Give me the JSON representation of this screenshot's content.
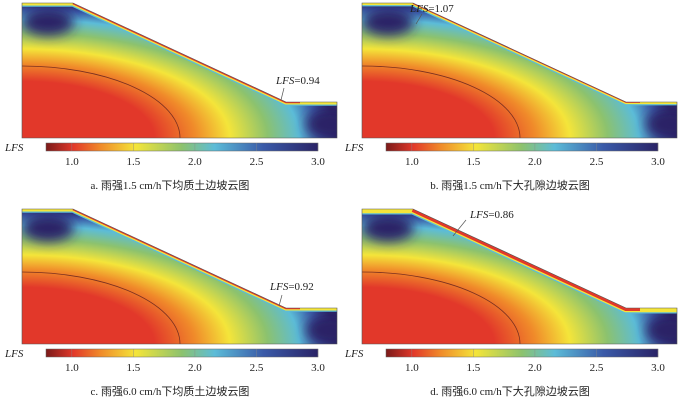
{
  "colorbar": {
    "label": "LFS",
    "ticks": [
      "1.0",
      "1.5",
      "2.0",
      "2.5",
      "3.0"
    ],
    "tick_values": [
      1.0,
      1.5,
      2.0,
      2.5,
      3.0
    ],
    "range": [
      0.79,
      3.0
    ]
  },
  "panels": [
    {
      "caption": "a. 雨强1.5 cm/h下均质土边坡云图",
      "annotation_prefix": "LFS",
      "annotation_value": "=0.94"
    },
    {
      "caption": "b. 雨强1.5 cm/h下大孔隙边坡云图",
      "annotation_prefix": "LFS",
      "annotation_value": "=1.07"
    },
    {
      "caption": "c. 雨强6.0 cm/h下均质土边坡云图",
      "annotation_prefix": "LFS",
      "annotation_value": "=0.92"
    },
    {
      "caption": "d. 雨强6.0 cm/h下大孔隙边坡云图",
      "annotation_prefix": "LFS",
      "annotation_value": "=0.86"
    }
  ],
  "colors": {
    "low": "#7a1a1a",
    "red": "#e2382a",
    "orange": "#f08a2a",
    "yellow": "#f4e53a",
    "green": "#8cc26e",
    "cyan": "#5cbcd8",
    "blue": "#3a5aa8",
    "navy": "#2a2366"
  }
}
